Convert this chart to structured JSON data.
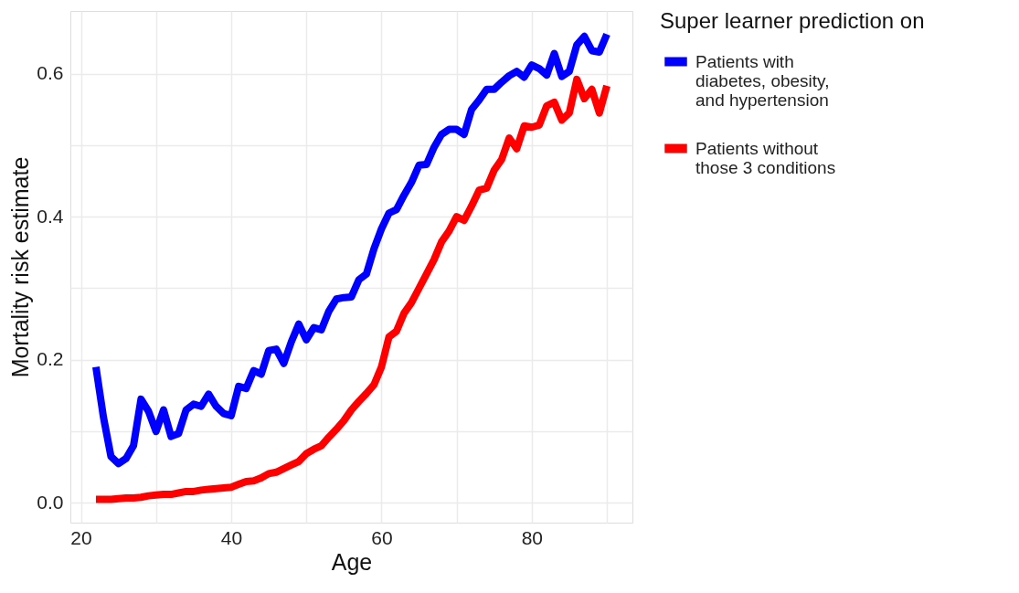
{
  "chart_data": {
    "type": "line",
    "xlabel": "Age",
    "ylabel": "Mortality risk estimate",
    "legend_title": "Super learner prediction on",
    "legend": "right",
    "grid": true,
    "line_style": "solid",
    "marker": "none",
    "x": [
      22,
      23,
      24,
      25,
      26,
      27,
      28,
      29,
      30,
      31,
      32,
      33,
      34,
      35,
      36,
      37,
      38,
      39,
      40,
      41,
      42,
      43,
      44,
      45,
      46,
      47,
      48,
      49,
      50,
      51,
      52,
      53,
      54,
      55,
      56,
      57,
      58,
      59,
      60,
      61,
      62,
      63,
      64,
      65,
      66,
      67,
      68,
      69,
      70,
      71,
      72,
      73,
      74,
      75,
      76,
      77,
      78,
      79,
      80,
      81,
      82,
      83,
      84,
      85,
      86,
      87,
      88,
      89,
      90
    ],
    "xlim": [
      18.6,
      93.4
    ],
    "xticks": [
      20,
      {
        "value": 30,
        "label": null
      },
      40,
      {
        "value": 50,
        "label": null
      },
      60,
      {
        "value": 70,
        "label": null
      },
      80,
      {
        "value": 90,
        "label": null
      }
    ],
    "ylim": [
      -0.0275,
      0.6875
    ],
    "yticks": [
      {
        "value": 0,
        "label": "0.0"
      },
      {
        "value": 0.1,
        "label": null
      },
      {
        "value": 0.2,
        "label": "0.2"
      },
      {
        "value": 0.3,
        "label": null
      },
      {
        "value": 0.4,
        "label": "0.4"
      },
      {
        "value": 0.5,
        "label": null
      },
      {
        "value": 0.6,
        "label": "0.6"
      }
    ],
    "series": [
      {
        "name": "Patients with diabetes, obesity, and hypertension",
        "color": "#0000ff",
        "values": [
          0.19,
          0.12,
          0.065,
          0.055,
          0.062,
          0.08,
          0.145,
          0.128,
          0.1,
          0.13,
          0.093,
          0.097,
          0.13,
          0.138,
          0.135,
          0.152,
          0.135,
          0.125,
          0.122,
          0.163,
          0.16,
          0.185,
          0.18,
          0.213,
          0.215,
          0.195,
          0.225,
          0.25,
          0.228,
          0.245,
          0.242,
          0.268,
          0.285,
          0.287,
          0.288,
          0.312,
          0.32,
          0.355,
          0.383,
          0.405,
          0.41,
          0.43,
          0.448,
          0.472,
          0.473,
          0.497,
          0.515,
          0.522,
          0.522,
          0.515,
          0.55,
          0.563,
          0.578,
          0.578,
          0.588,
          0.597,
          0.603,
          0.595,
          0.612,
          0.607,
          0.598,
          0.628,
          0.596,
          0.603,
          0.64,
          0.652,
          0.632,
          0.63,
          0.655
        ]
      },
      {
        "name": "Patients without those 3 conditions",
        "color": "#ff0000",
        "values": [
          0.005,
          0.005,
          0.005,
          0.006,
          0.007,
          0.007,
          0.008,
          0.01,
          0.011,
          0.012,
          0.012,
          0.014,
          0.016,
          0.016,
          0.018,
          0.019,
          0.02,
          0.021,
          0.022,
          0.026,
          0.03,
          0.031,
          0.035,
          0.041,
          0.043,
          0.048,
          0.053,
          0.058,
          0.069,
          0.075,
          0.08,
          0.092,
          0.103,
          0.115,
          0.13,
          0.142,
          0.153,
          0.165,
          0.19,
          0.232,
          0.24,
          0.265,
          0.28,
          0.3,
          0.32,
          0.34,
          0.365,
          0.38,
          0.4,
          0.395,
          0.415,
          0.437,
          0.44,
          0.465,
          0.48,
          0.51,
          0.495,
          0.527,
          0.525,
          0.528,
          0.555,
          0.56,
          0.535,
          0.545,
          0.592,
          0.565,
          0.578,
          0.545,
          0.583
        ]
      }
    ]
  }
}
